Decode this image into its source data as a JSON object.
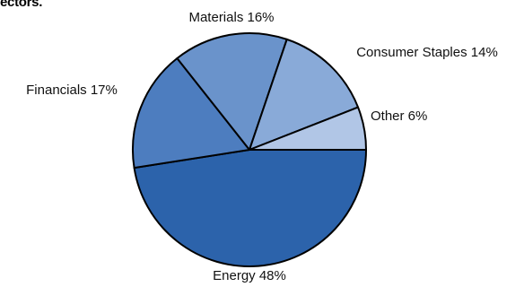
{
  "chart_data": {
    "type": "pie",
    "title": "ectors.",
    "slices": [
      {
        "label": "Energy",
        "value": 48,
        "value_label": "48%",
        "color": "#2c63ab"
      },
      {
        "label": "Financials",
        "value": 17,
        "value_label": "17%",
        "color": "#4d7dbf"
      },
      {
        "label": "Materials",
        "value": 16,
        "value_label": "16%",
        "color": "#6a93cb"
      },
      {
        "label": "Consumer Staples",
        "value": 14,
        "value_label": "14%",
        "color": "#89aad8"
      },
      {
        "label": "Other",
        "value": 6,
        "value_label": "6%",
        "color": "#b1c6e6"
      }
    ],
    "legend": "none",
    "grid": false
  }
}
